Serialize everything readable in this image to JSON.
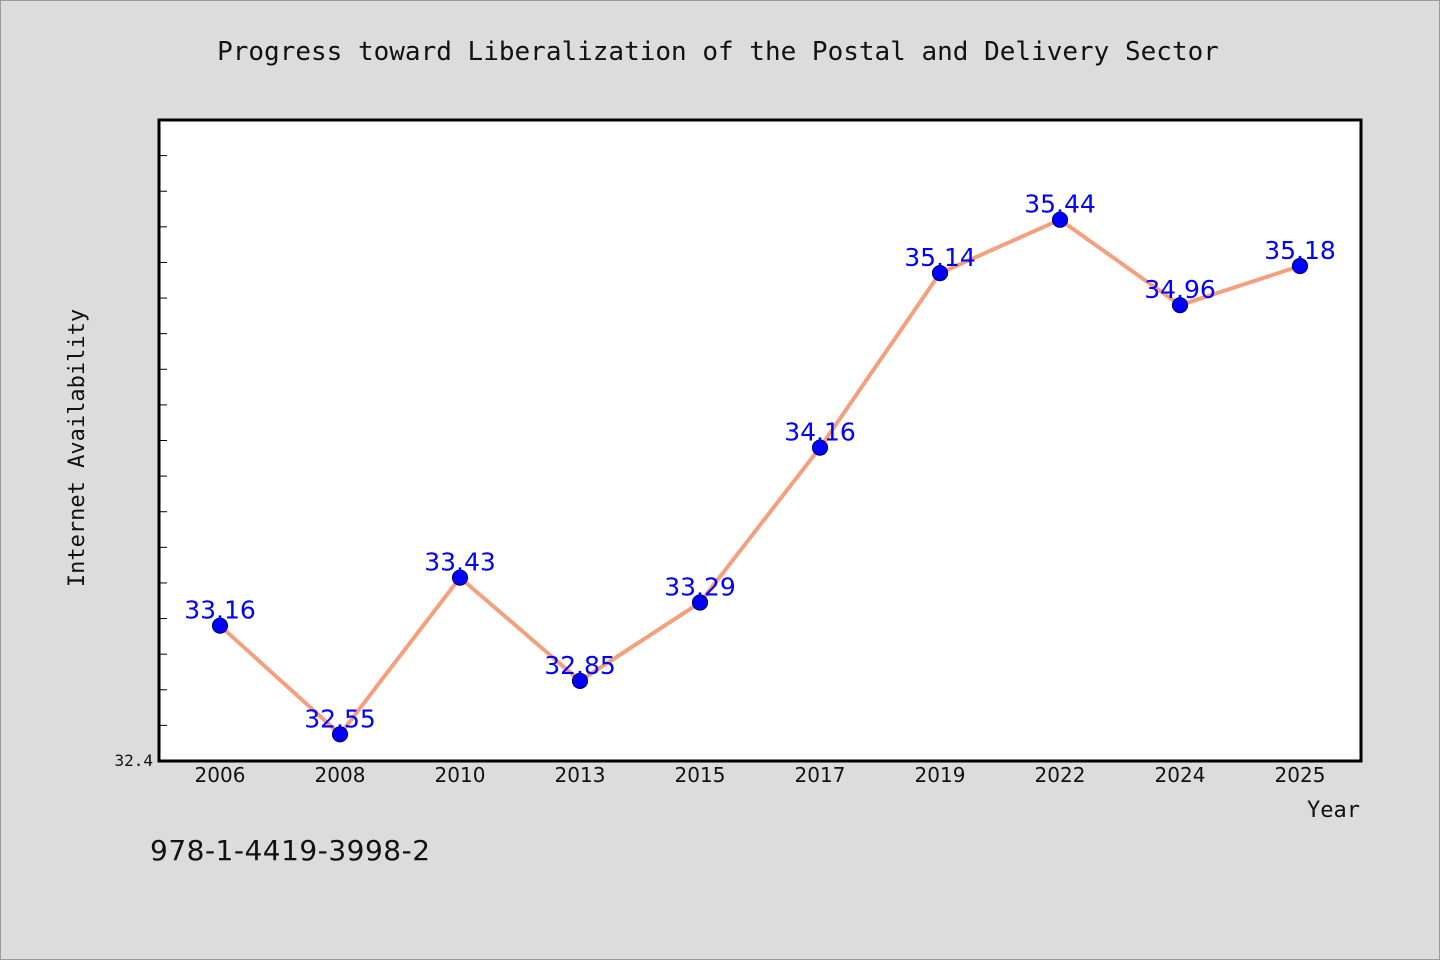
{
  "chart_data": {
    "type": "line",
    "title": "Progress toward Liberalization of the Postal and Delivery Sector",
    "xlabel": "Year",
    "ylabel": "Internet Availability",
    "categories": [
      "2006",
      "2008",
      "2010",
      "2013",
      "2015",
      "2017",
      "2019",
      "2022",
      "2024",
      "2025"
    ],
    "series": [
      {
        "values": [
          33.16,
          32.55,
          33.43,
          32.85,
          33.29,
          34.16,
          35.14,
          35.44,
          34.96,
          35.18
        ],
        "labels": [
          "33.16",
          "32.55",
          "33.43",
          "32.85",
          "33.29",
          "34.16",
          "35.14",
          "35.44",
          "34.96",
          "35.18"
        ],
        "line_color": "#f4a07e",
        "marker_color": "#0000ff"
      }
    ],
    "ylim": [
      32.4,
      36.0
    ],
    "ytick_labels": [
      "32.4"
    ],
    "grid": false,
    "data_label_color": "#0000ff"
  },
  "footer": {
    "isbn": "978-1-4419-3998-2"
  }
}
